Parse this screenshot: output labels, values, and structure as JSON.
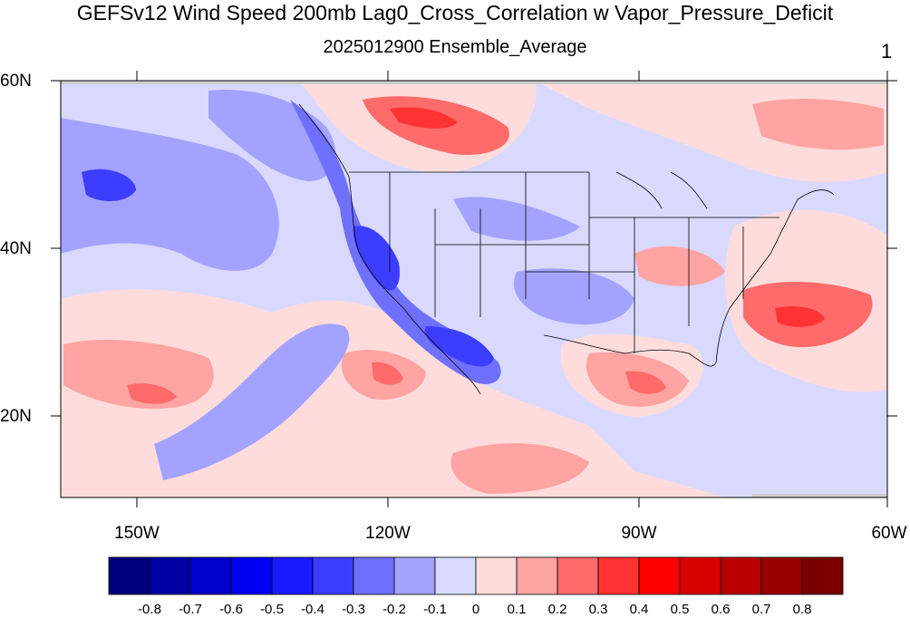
{
  "title": "GEFSv12 Wind Speed 200mb Lag0_Cross_Correlation w Vapor_Pressure_Deficit",
  "subtitle": "2025012900 Ensemble_Average",
  "corner_label": "1",
  "lat_labels": [
    "60N",
    "40N",
    "20N"
  ],
  "lon_labels": [
    "150W",
    "120W",
    "90W",
    "60W"
  ],
  "colorbar": {
    "colors": [
      "#00007f",
      "#0000a6",
      "#0000cc",
      "#0000f2",
      "#1a1aff",
      "#3d3dff",
      "#7070ff",
      "#a3a3ff",
      "#d9d9ff",
      "#ffdcdc",
      "#ffa3a3",
      "#ff6b6b",
      "#ff3333",
      "#ff0000",
      "#d90000",
      "#b80000",
      "#990000",
      "#7a0000"
    ],
    "labels": [
      "-0.8",
      "-0.7",
      "-0.6",
      "-0.5",
      "-0.4",
      "-0.3",
      "-0.2",
      "-0.1",
      "0",
      "0.1",
      "0.2",
      "0.3",
      "0.4",
      "0.5",
      "0.6",
      "0.7",
      "0.8"
    ]
  }
}
